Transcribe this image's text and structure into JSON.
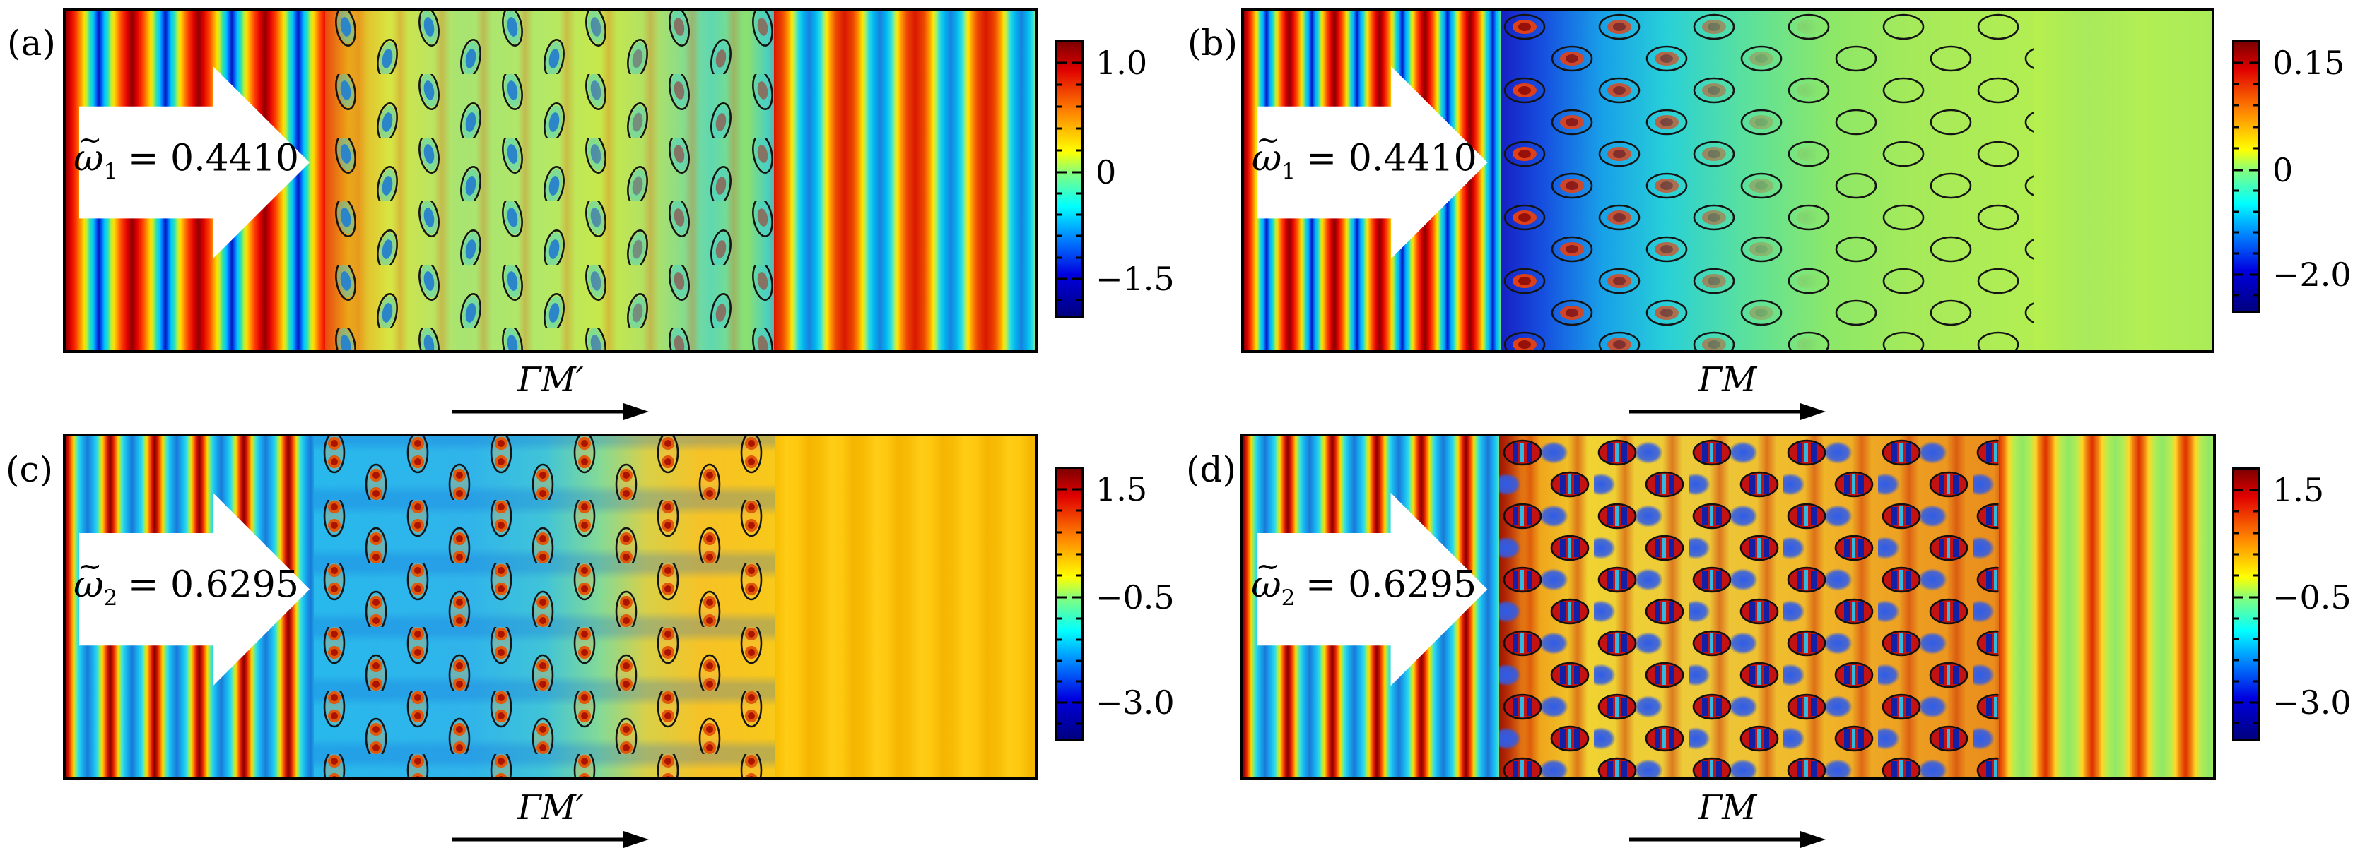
{
  "figure": {
    "background": "#ffffff",
    "colormap": "jet",
    "panels": [
      {
        "tag": "(a)",
        "freq": {
          "tilde": "~",
          "omega": "ω",
          "sub": "1",
          "value": "= 0.4410"
        },
        "direction": "ΓM′",
        "colorbar": {
          "ticks": [
            "1.0",
            "0",
            "−1.5"
          ]
        }
      },
      {
        "tag": "(b)",
        "freq": {
          "tilde": "~",
          "omega": "ω",
          "sub": "1",
          "value": "= 0.4410"
        },
        "direction": "ΓM",
        "colorbar": {
          "ticks": [
            "0.15",
            "0",
            "−2.0"
          ]
        }
      },
      {
        "tag": "(c)",
        "freq": {
          "tilde": "~",
          "omega": "ω",
          "sub": "2",
          "value": "= 0.6295"
        },
        "direction": "ΓM′",
        "colorbar": {
          "ticks": [
            "1.5",
            "−0.5",
            "−3.0"
          ]
        }
      },
      {
        "tag": "(d)",
        "freq": {
          "tilde": "~",
          "omega": "ω",
          "sub": "2",
          "value": "= 0.6295"
        },
        "direction": "ΓM",
        "colorbar": {
          "ticks": [
            "1.5",
            "−0.5",
            "−3.0"
          ]
        }
      }
    ]
  },
  "chart_data": [
    {
      "type": "heatmap",
      "panel": "(a)",
      "annotation": "ω̃1 = 0.4410",
      "propagation_direction": "ΓM′",
      "colorbar_tick_values": [
        1.0,
        0,
        -1.5
      ],
      "colormap": "jet",
      "legend_position": "right",
      "content": "Plane wave incident from the left transmits through a phononic-crystal slab of tilted elliptical inclusions; strong striped wave field on both input and output sides."
    },
    {
      "type": "heatmap",
      "panel": "(b)",
      "annotation": "ω̃1 = 0.4410",
      "propagation_direction": "ΓM",
      "colorbar_tick_values": [
        0.15,
        0,
        -2.0
      ],
      "colormap": "jet",
      "legend_position": "right",
      "content": "Plane wave incident from the left decays inside the crystal of horizontal elliptical inclusions; nearly uniform field on the right (band gap, no transmission)."
    },
    {
      "type": "heatmap",
      "panel": "(c)",
      "annotation": "ω̃2 = 0.6295",
      "propagation_direction": "ΓM′",
      "colorbar_tick_values": [
        1.5,
        -0.5,
        -3.0
      ],
      "colormap": "jet",
      "legend_position": "right",
      "content": "Wave field inside crystal of vertical elliptical inclusions with double red lobes per inclusion; field decays toward a nearly uniform orange region on the right."
    },
    {
      "type": "heatmap",
      "panel": "(d)",
      "annotation": "ω̃2 = 0.6295",
      "propagation_direction": "ΓM",
      "colorbar_tick_values": [
        1.5,
        -0.5,
        -3.0
      ],
      "colormap": "jet",
      "legend_position": "right",
      "content": "Wave transmits through crystal of horizontal elliptical inclusions with striped red/blue cores; striped transmitted field on the right."
    }
  ]
}
